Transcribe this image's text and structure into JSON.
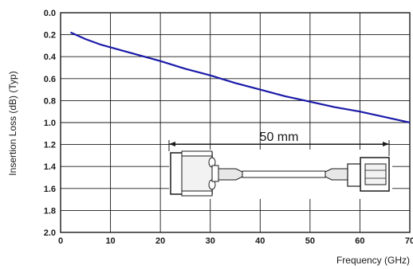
{
  "chart_data": {
    "type": "line",
    "xlabel": "Frequency (GHz)",
    "ylabel": "Insertion Loss (dB) (Typ)",
    "xlim": [
      0,
      70
    ],
    "ylim": [
      0.0,
      2.0
    ],
    "y_inverted": true,
    "grid": true,
    "x_ticks": [
      "0",
      "10",
      "20",
      "30",
      "40",
      "50",
      "60",
      "70"
    ],
    "y_ticks": [
      "0.0",
      "0.2",
      "0.4",
      "0.6",
      "0.8",
      "1.0",
      "1.2",
      "1.4",
      "1.6",
      "1.8",
      "2.0"
    ],
    "annotation": "50 mm",
    "line_color": "#1a1aa8",
    "series": [
      {
        "x": [
          2,
          5,
          8,
          12,
          16,
          20,
          25,
          30,
          35,
          40,
          45,
          50,
          55,
          60,
          65,
          70
        ],
        "values": [
          0.18,
          0.24,
          0.29,
          0.34,
          0.39,
          0.44,
          0.51,
          0.57,
          0.64,
          0.7,
          0.76,
          0.81,
          0.86,
          0.9,
          0.95,
          1.0
        ]
      }
    ]
  }
}
